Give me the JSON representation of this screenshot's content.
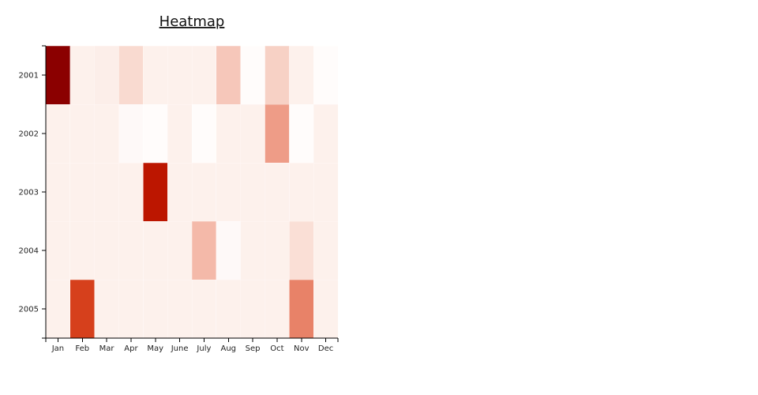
{
  "chart_data": {
    "type": "heatmap",
    "title": "Heatmap",
    "xlabel": "",
    "ylabel": "",
    "x_categories": [
      "Jan",
      "Feb",
      "Mar",
      "Apr",
      "May",
      "June",
      "July",
      "Aug",
      "Sep",
      "Oct",
      "Nov",
      "Dec"
    ],
    "y_categories": [
      "2001",
      "2002",
      "2003",
      "2004",
      "2005"
    ],
    "values": [
      [
        100,
        5,
        6,
        14,
        5,
        5,
        5,
        22,
        1,
        18,
        5,
        1
      ],
      [
        5,
        5,
        5,
        2,
        1,
        5,
        1,
        5,
        5,
        40,
        1,
        5
      ],
      [
        5,
        5,
        5,
        5,
        88,
        5,
        5,
        5,
        5,
        5,
        5,
        5
      ],
      [
        5,
        5,
        5,
        5,
        5,
        5,
        28,
        2,
        5,
        5,
        12,
        5
      ],
      [
        5,
        75,
        5,
        5,
        5,
        5,
        5,
        5,
        5,
        5,
        50,
        5
      ]
    ],
    "value_range": [
      0,
      100
    ],
    "colorscale": [
      "#ffffff",
      "#fbe8e1",
      "#f1a996",
      "#db4a24",
      "#c41a00",
      "#8b0000"
    ],
    "grid": false,
    "legend": "none"
  }
}
